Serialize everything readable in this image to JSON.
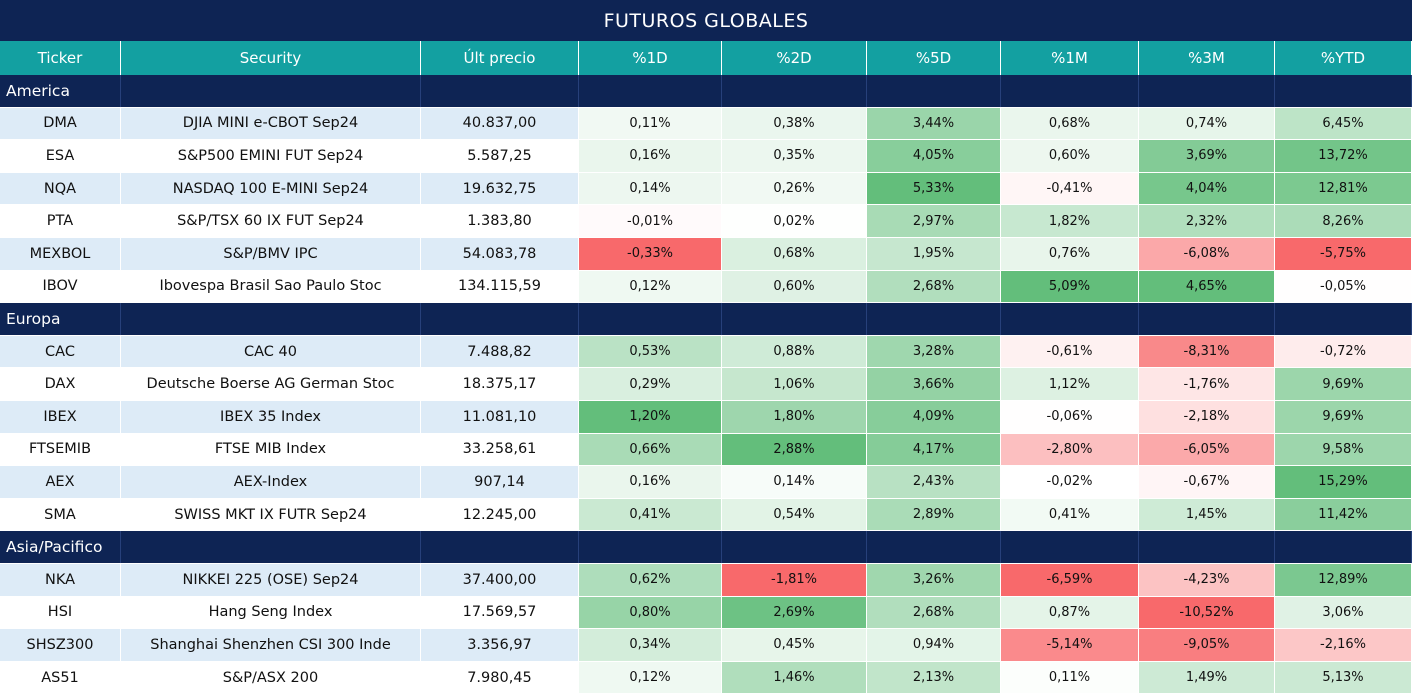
{
  "title": "FUTUROS GLOBALES",
  "columns": [
    "Ticker",
    "Security",
    "Últ precio",
    "%1D",
    "%2D",
    "%5D",
    "%1M",
    "%3M",
    "%YTD"
  ],
  "groups": [
    {
      "name": "America",
      "rows": [
        {
          "ticker": "DMA",
          "security": "DJIA MINI e-CBOT  Sep24",
          "price": "40.837,00",
          "values": [
            0.11,
            0.38,
            3.44,
            0.68,
            0.74,
            6.45
          ],
          "labels": [
            "0,11%",
            "0,38%",
            "3,44%",
            "0,68%",
            "0,74%",
            "6,45%"
          ]
        },
        {
          "ticker": "ESA",
          "security": "S&P500 EMINI FUT  Sep24",
          "price": "5.587,25",
          "values": [
            0.16,
            0.35,
            4.05,
            0.6,
            3.69,
            13.72
          ],
          "labels": [
            "0,16%",
            "0,35%",
            "4,05%",
            "0,60%",
            "3,69%",
            "13,72%"
          ]
        },
        {
          "ticker": "NQA",
          "security": "NASDAQ 100 E-MINI Sep24",
          "price": "19.632,75",
          "values": [
            0.14,
            0.26,
            5.33,
            -0.41,
            4.04,
            12.81
          ],
          "labels": [
            "0,14%",
            "0,26%",
            "5,33%",
            "-0,41%",
            "4,04%",
            "12,81%"
          ]
        },
        {
          "ticker": "PTA",
          "security": "S&P/TSX 60 IX FUT Sep24",
          "price": "1.383,80",
          "values": [
            -0.01,
            0.02,
            2.97,
            1.82,
            2.32,
            8.26
          ],
          "labels": [
            "-0,01%",
            "0,02%",
            "2,97%",
            "1,82%",
            "2,32%",
            "8,26%"
          ]
        },
        {
          "ticker": "MEXBOL",
          "security": "S&P/BMV IPC",
          "price": "54.083,78",
          "values": [
            -0.33,
            0.68,
            1.95,
            0.76,
            -6.08,
            -5.75
          ],
          "labels": [
            "-0,33%",
            "0,68%",
            "1,95%",
            "0,76%",
            "-6,08%",
            "-5,75%"
          ]
        },
        {
          "ticker": "IBOV",
          "security": "Ibovespa Brasil Sao Paulo Stoc",
          "price": "134.115,59",
          "values": [
            0.12,
            0.6,
            2.68,
            5.09,
            4.65,
            -0.05
          ],
          "labels": [
            "0,12%",
            "0,60%",
            "2,68%",
            "5,09%",
            "4,65%",
            "-0,05%"
          ]
        }
      ]
    },
    {
      "name": "Europa",
      "rows": [
        {
          "ticker": "CAC",
          "security": "CAC 40",
          "price": "7.488,82",
          "values": [
            0.53,
            0.88,
            3.28,
            -0.61,
            -8.31,
            -0.72
          ],
          "labels": [
            "0,53%",
            "0,88%",
            "3,28%",
            "-0,61%",
            "-8,31%",
            "-0,72%"
          ]
        },
        {
          "ticker": "DAX",
          "security": "Deutsche Boerse AG German Stoc",
          "price": "18.375,17",
          "values": [
            0.29,
            1.06,
            3.66,
            1.12,
            -1.76,
            9.69
          ],
          "labels": [
            "0,29%",
            "1,06%",
            "3,66%",
            "1,12%",
            "-1,76%",
            "9,69%"
          ]
        },
        {
          "ticker": "IBEX",
          "security": "IBEX 35 Index",
          "price": "11.081,10",
          "values": [
            1.2,
            1.8,
            4.09,
            -0.06,
            -2.18,
            9.69
          ],
          "labels": [
            "1,20%",
            "1,80%",
            "4,09%",
            "-0,06%",
            "-2,18%",
            "9,69%"
          ]
        },
        {
          "ticker": "FTSEMIB",
          "security": "FTSE MIB Index",
          "price": "33.258,61",
          "values": [
            0.66,
            2.88,
            4.17,
            -2.8,
            -6.05,
            9.58
          ],
          "labels": [
            "0,66%",
            "2,88%",
            "4,17%",
            "-2,80%",
            "-6,05%",
            "9,58%"
          ]
        },
        {
          "ticker": "AEX",
          "security": "AEX-Index",
          "price": "907,14",
          "values": [
            0.16,
            0.14,
            2.43,
            -0.02,
            -0.67,
            15.29
          ],
          "labels": [
            "0,16%",
            "0,14%",
            "2,43%",
            "-0,02%",
            "-0,67%",
            "15,29%"
          ]
        },
        {
          "ticker": "SMA",
          "security": "SWISS MKT IX FUTR Sep24",
          "price": "12.245,00",
          "values": [
            0.41,
            0.54,
            2.89,
            0.41,
            1.45,
            11.42
          ],
          "labels": [
            "0,41%",
            "0,54%",
            "2,89%",
            "0,41%",
            "1,45%",
            "11,42%"
          ]
        }
      ]
    },
    {
      "name": "Asia/Pacifico",
      "rows": [
        {
          "ticker": "NKA",
          "security": "NIKKEI 225  (OSE) Sep24",
          "price": "37.400,00",
          "values": [
            0.62,
            -1.81,
            3.26,
            -6.59,
            -4.23,
            12.89
          ],
          "labels": [
            "0,62%",
            "-1,81%",
            "3,26%",
            "-6,59%",
            "-4,23%",
            "12,89%"
          ]
        },
        {
          "ticker": "HSI",
          "security": "Hang Seng Index",
          "price": "17.569,57",
          "values": [
            0.8,
            2.69,
            2.68,
            0.87,
            -10.52,
            3.06
          ],
          "labels": [
            "0,80%",
            "2,69%",
            "2,68%",
            "0,87%",
            "-10,52%",
            "3,06%"
          ]
        },
        {
          "ticker": "SHSZ300",
          "security": "Shanghai Shenzhen CSI 300 Inde",
          "price": "3.356,97",
          "values": [
            0.34,
            0.45,
            0.94,
            -5.14,
            -9.05,
            -2.16
          ],
          "labels": [
            "0,34%",
            "0,45%",
            "0,94%",
            "-5,14%",
            "-9,05%",
            "-2,16%"
          ]
        },
        {
          "ticker": "AS51",
          "security": "S&P/ASX 200",
          "price": "7.980,45",
          "values": [
            0.12,
            1.46,
            2.13,
            0.11,
            1.49,
            5.13
          ],
          "labels": [
            "0,12%",
            "1,46%",
            "2,13%",
            "0,11%",
            "1,49%",
            "5,13%"
          ]
        }
      ]
    }
  ]
}
